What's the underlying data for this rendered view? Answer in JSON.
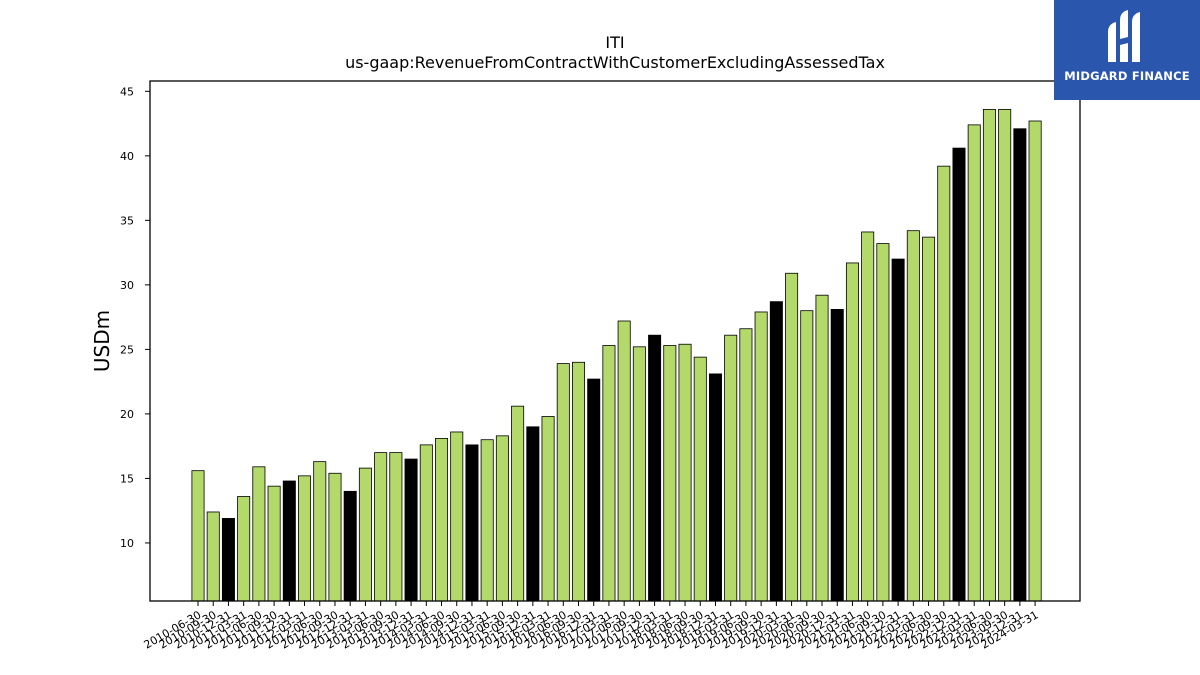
{
  "chart_data": {
    "type": "bar",
    "title": "ITI",
    "subtitle": "us-gaap:RevenueFromContractWithCustomerExcludingAssessedTax",
    "xlabel": "",
    "ylabel": "USDm",
    "ylim": [
      5.5,
      45.8
    ],
    "yticks": [
      10,
      15,
      20,
      25,
      30,
      35,
      40,
      45
    ],
    "grid": false,
    "colors": {
      "quarter": "#b3d96b",
      "fiscal_year_end": "#000000",
      "edge": "#000000"
    },
    "categories": [
      "2010-06-30",
      "2010-09-30",
      "2010-12-31",
      "2011-03-31",
      "2011-06-30",
      "2011-09-30",
      "2011-12-31",
      "2012-03-31",
      "2012-06-30",
      "2012-09-30",
      "2012-12-31",
      "2013-03-31",
      "2013-06-30",
      "2013-09-30",
      "2013-12-31",
      "2014-03-31",
      "2014-06-30",
      "2014-09-30",
      "2014-12-31",
      "2015-03-31",
      "2015-06-30",
      "2015-09-30",
      "2015-12-31",
      "2016-03-31",
      "2016-06-30",
      "2016-09-30",
      "2016-12-31",
      "2017-03-31",
      "2017-06-30",
      "2017-09-30",
      "2017-12-31",
      "2018-03-31",
      "2018-06-30",
      "2018-09-30",
      "2018-12-31",
      "2019-03-31",
      "2019-06-30",
      "2019-09-30",
      "2019-12-31",
      "2020-03-31",
      "2020-06-30",
      "2020-09-30",
      "2020-12-31",
      "2021-03-31",
      "2021-06-30",
      "2021-09-30",
      "2021-12-31",
      "2022-03-31",
      "2022-06-30",
      "2022-09-30",
      "2022-12-31",
      "2023-03-31",
      "2023-06-30",
      "2023-09-30",
      "2023-12-31",
      "2024-03-31"
    ],
    "values": [
      15.6,
      12.4,
      11.9,
      13.6,
      15.9,
      14.4,
      14.8,
      15.2,
      16.3,
      15.4,
      14.0,
      15.8,
      17.0,
      17.0,
      16.5,
      17.6,
      18.1,
      18.6,
      17.6,
      18.0,
      18.3,
      20.6,
      19.0,
      19.8,
      23.9,
      24.0,
      22.7,
      25.3,
      27.2,
      25.2,
      26.1,
      25.3,
      25.4,
      24.4,
      23.1,
      26.1,
      26.6,
      27.9,
      28.7,
      30.9,
      28.0,
      29.2,
      28.1,
      31.7,
      34.1,
      33.2,
      32.0,
      34.2,
      33.7,
      39.2,
      40.6,
      42.4,
      43.6,
      43.6,
      42.1,
      42.7
    ],
    "highlight_fiscal_year_end": [
      2,
      6,
      10,
      14,
      18,
      22,
      26,
      30,
      34,
      38,
      42,
      46,
      50,
      54
    ]
  },
  "logo": {
    "name": "MIDGARD FINANCE",
    "icon": "midgard-logo-icon"
  }
}
